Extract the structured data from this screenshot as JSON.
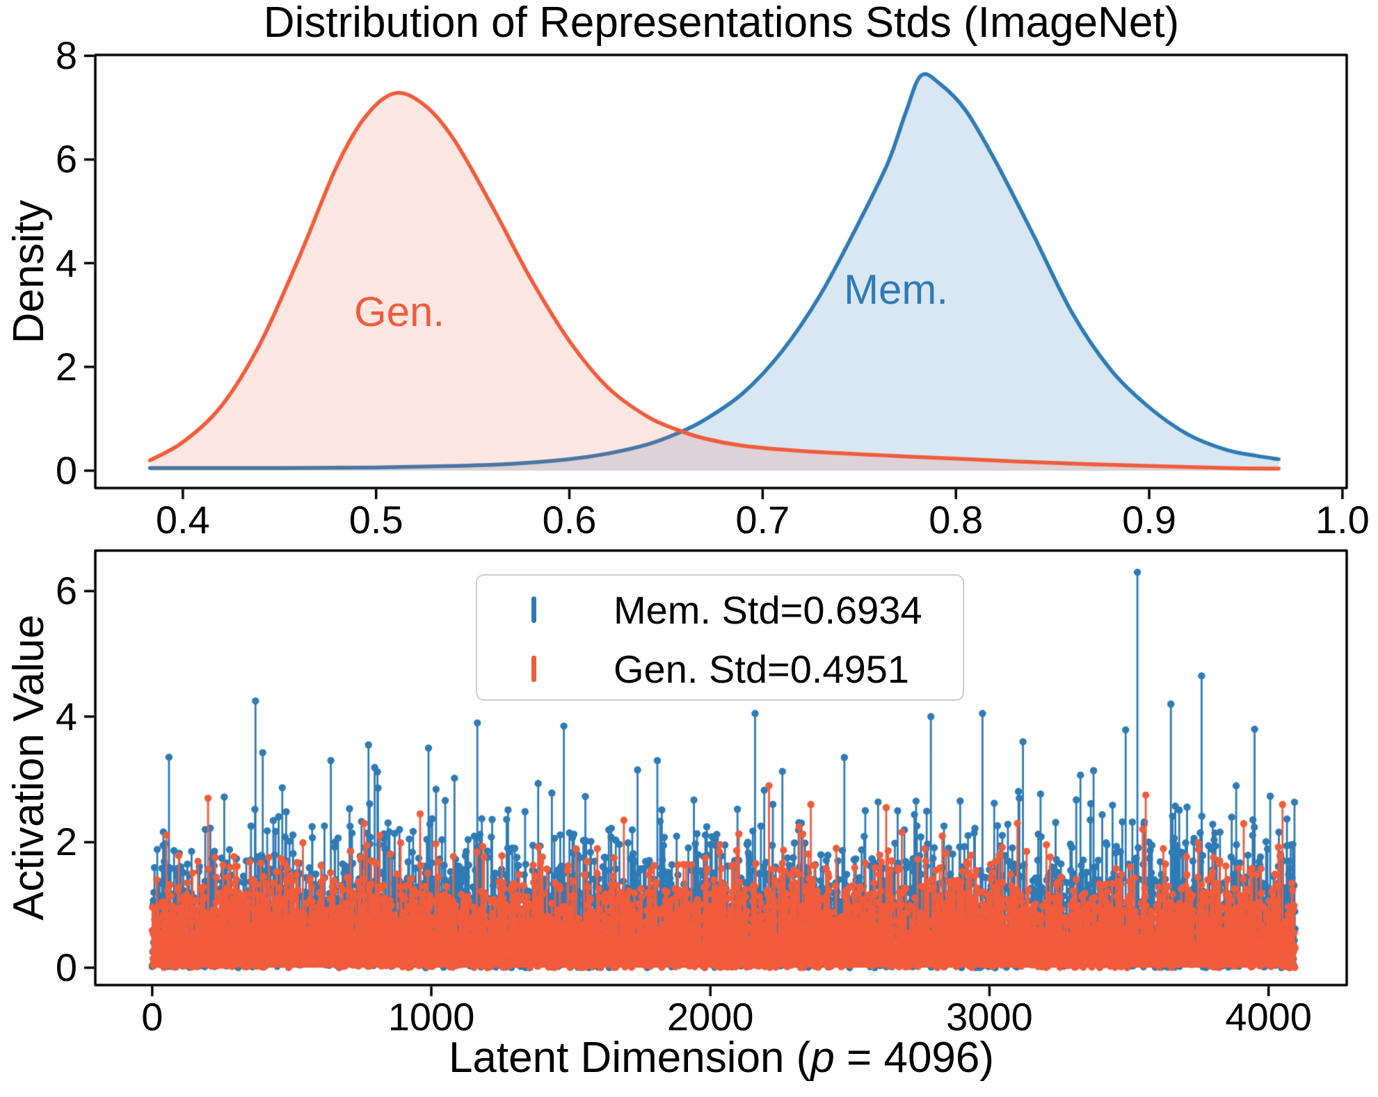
{
  "figure": {
    "background": "#ffffff"
  },
  "colors": {
    "mem": "#2F7BB6",
    "gen": "#F15C3C",
    "mem_fill": "rgba(47,123,182,0.18)",
    "gen_fill": "rgba(241,92,60,0.15)",
    "axis": "#000000",
    "legend_border": "#cccccc",
    "text": "#000000"
  },
  "chart_data": [
    {
      "id": "kde-top",
      "type": "area",
      "title": "Distribution of Representations Stds (ImageNet)",
      "xlabel": "",
      "ylabel": "Density",
      "grid": false,
      "xlim": [
        0.3547,
        1.0022
      ],
      "ylim": [
        -0.335,
        8.016
      ],
      "x_ticks": [
        {
          "value": 0.4,
          "label": "0.4"
        },
        {
          "value": 0.5,
          "label": "0.5"
        },
        {
          "value": 0.6,
          "label": "0.6"
        },
        {
          "value": 0.7,
          "label": "0.7"
        },
        {
          "value": 0.8,
          "label": "0.8"
        },
        {
          "value": 0.9,
          "label": "0.9"
        },
        {
          "value": 1.0,
          "label": "1.0"
        }
      ],
      "y_ticks": [
        {
          "value": 0,
          "label": "0"
        },
        {
          "value": 2,
          "label": "2"
        },
        {
          "value": 4,
          "label": "4"
        },
        {
          "value": 6,
          "label": "6"
        },
        {
          "value": 8,
          "label": "8"
        }
      ],
      "series": [
        {
          "name": "Mem.",
          "color_key": "mem",
          "fill_key": "mem_fill",
          "peak_x": 0.782,
          "peak_y": 7.62,
          "points": [
            [
              0.383,
              0.05
            ],
            [
              0.45,
              0.05
            ],
            [
              0.5,
              0.06
            ],
            [
              0.54,
              0.09
            ],
            [
              0.57,
              0.13
            ],
            [
              0.6,
              0.22
            ],
            [
              0.62,
              0.33
            ],
            [
              0.64,
              0.5
            ],
            [
              0.656,
              0.72
            ],
            [
              0.67,
              0.98
            ],
            [
              0.69,
              1.5
            ],
            [
              0.71,
              2.3
            ],
            [
              0.73,
              3.4
            ],
            [
              0.75,
              4.8
            ],
            [
              0.765,
              5.95
            ],
            [
              0.774,
              6.9
            ],
            [
              0.782,
              7.62
            ],
            [
              0.792,
              7.45
            ],
            [
              0.805,
              6.95
            ],
            [
              0.82,
              6.0
            ],
            [
              0.84,
              4.55
            ],
            [
              0.86,
              3.05
            ],
            [
              0.88,
              1.95
            ],
            [
              0.9,
              1.22
            ],
            [
              0.92,
              0.7
            ],
            [
              0.94,
              0.4
            ],
            [
              0.955,
              0.29
            ],
            [
              0.967,
              0.22
            ]
          ]
        },
        {
          "name": "Gen.",
          "color_key": "gen",
          "fill_key": "gen_fill",
          "peak_x": 0.51,
          "peak_y": 7.28,
          "points": [
            [
              0.383,
              0.2
            ],
            [
              0.4,
              0.55
            ],
            [
              0.42,
              1.25
            ],
            [
              0.44,
              2.45
            ],
            [
              0.46,
              4.1
            ],
            [
              0.48,
              5.9
            ],
            [
              0.495,
              6.85
            ],
            [
              0.51,
              7.28
            ],
            [
              0.525,
              7.05
            ],
            [
              0.54,
              6.4
            ],
            [
              0.56,
              5.1
            ],
            [
              0.58,
              3.7
            ],
            [
              0.6,
              2.5
            ],
            [
              0.62,
              1.6
            ],
            [
              0.64,
              1.05
            ],
            [
              0.655,
              0.8
            ],
            [
              0.67,
              0.62
            ],
            [
              0.69,
              0.48
            ],
            [
              0.72,
              0.38
            ],
            [
              0.76,
              0.3
            ],
            [
              0.8,
              0.23
            ],
            [
              0.85,
              0.15
            ],
            [
              0.9,
              0.09
            ],
            [
              0.94,
              0.05
            ],
            [
              0.967,
              0.04
            ]
          ]
        }
      ],
      "annotations": [
        {
          "text": "Gen.",
          "x": 0.512,
          "y": 3.05,
          "color_key": "gen"
        },
        {
          "text": "Mem.",
          "x": 0.769,
          "y": 3.48,
          "color_key": "mem"
        }
      ]
    },
    {
      "id": "stem-bottom",
      "type": "stem",
      "ylabel": "Activation Value",
      "xlabel_prefix": "Latent Dimension (",
      "xlabel_var": "p",
      "xlabel_suffix": " = 4096)",
      "grid": false,
      "xlim": [
        -204,
        4280
      ],
      "ylim": [
        -0.277,
        6.645
      ],
      "n_dimensions": 4096,
      "x_ticks": [
        {
          "value": 0,
          "label": "0"
        },
        {
          "value": 1000,
          "label": "1000"
        },
        {
          "value": 2000,
          "label": "2000"
        },
        {
          "value": 3000,
          "label": "3000"
        },
        {
          "value": 4000,
          "label": "4000"
        }
      ],
      "y_ticks": [
        {
          "value": 0,
          "label": "0"
        },
        {
          "value": 2,
          "label": "2"
        },
        {
          "value": 4,
          "label": "4"
        },
        {
          "value": 6,
          "label": "6"
        }
      ],
      "legend": {
        "position": "upper center",
        "entries": [
          {
            "label": "Mem. Std=0.6934",
            "color_key": "mem"
          },
          {
            "label": "Gen. Std=0.4951",
            "color_key": "gen"
          }
        ]
      },
      "series": [
        {
          "name": "Mem.",
          "std_label": 0.6934,
          "color_key": "mem",
          "synth": {
            "seed": 20240,
            "sigma": 0.95,
            "outlier_rate": 0.012,
            "outlier_boost": [
              1.4,
              2.1
            ],
            "clamp": 4.35
          },
          "notable_peaks": [
            [
              370,
              4.25
            ],
            [
              640,
              3.3
            ],
            [
              775,
              3.55
            ],
            [
              990,
              3.5
            ],
            [
              1165,
              3.9
            ],
            [
              1475,
              3.85
            ],
            [
              1810,
              3.3
            ],
            [
              2160,
              4.05
            ],
            [
              2480,
              3.35
            ],
            [
              2790,
              4.0
            ],
            [
              2975,
              4.05
            ],
            [
              3120,
              3.6
            ],
            [
              3530,
              6.3
            ],
            [
              3650,
              4.2
            ],
            [
              3760,
              4.65
            ],
            [
              3950,
              3.8
            ]
          ]
        },
        {
          "name": "Gen.",
          "std_label": 0.4951,
          "color_key": "gen",
          "synth": {
            "seed": 777,
            "sigma": 0.7,
            "outlier_rate": 0.01,
            "outlier_boost": [
              1.3,
              1.8
            ],
            "clamp": 2.95
          },
          "notable_peaks": [
            [
              200,
              2.7
            ],
            [
              760,
              2.3
            ],
            [
              960,
              2.45
            ],
            [
              1690,
              2.35
            ],
            [
              2210,
              2.9
            ],
            [
              2360,
              2.6
            ],
            [
              2630,
              2.55
            ],
            [
              3100,
              2.3
            ],
            [
              3560,
              2.75
            ],
            [
              4050,
              2.6
            ]
          ]
        }
      ]
    }
  ]
}
